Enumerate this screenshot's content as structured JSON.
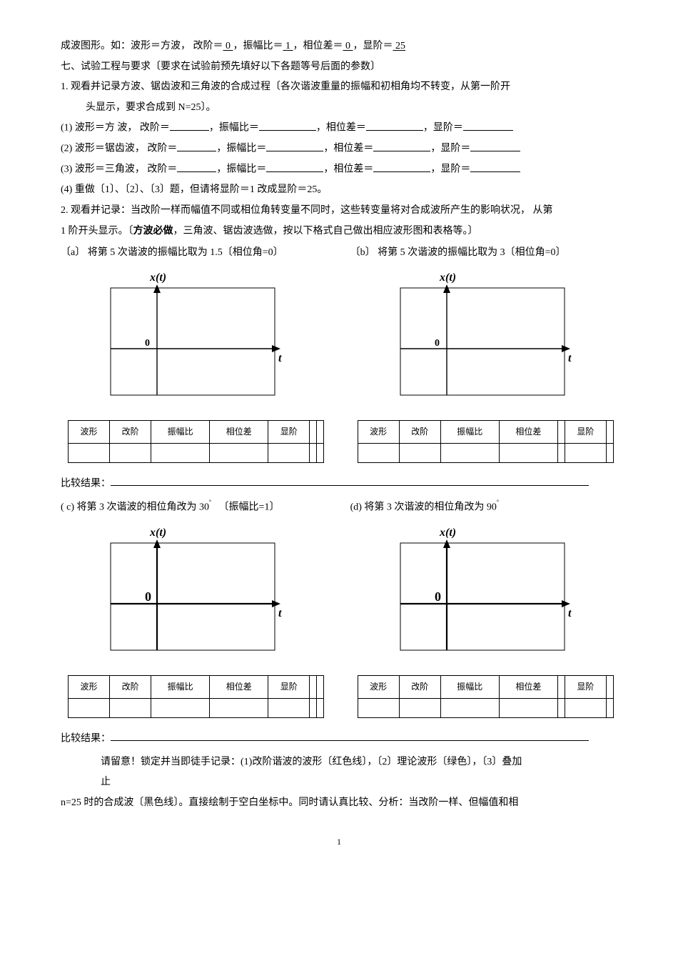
{
  "intro": {
    "line0_prefix": "成波图形。如：波形＝方波， 改阶＝",
    "v0": " 0 ",
    "t1": "，振幅比＝",
    "v1": " 1 ",
    "t2": "，相位差＝",
    "v2": " 0 ",
    "t3": "，显阶＝",
    "v3": " 25 "
  },
  "sec7_title": "七、试验工程与要求〔要求在试验前预先填好以下各题等号后面的参数〕",
  "item1": "1.  观看并记录方波、锯齿波和三角波的合成过程〔各次谐波重量的振幅和初相角均不转变，从第一阶开",
  "item1b": "头显示，要求合成到 N=25〕。",
  "rows": [
    {
      "idx": "(1)",
      "wave": "波形＝方   波， 改阶＝",
      "a": "，振幅比＝",
      "b": "，相位差＝",
      "c": "，显阶＝"
    },
    {
      "idx": "(2)",
      "wave": "波形＝锯齿波， 改阶＝",
      "a": "，振幅比＝",
      "b": "，相位差＝",
      "c": "，显阶＝"
    },
    {
      "idx": "(3)",
      "wave": "波形＝三角波， 改阶＝",
      "a": "，振幅比＝",
      "b": "，相位差＝",
      "c": "，显阶＝"
    }
  ],
  "item4": "(4) 重做〔1〕、〔2〕、〔3〕题，但请将显阶＝1 改成显阶＝25。",
  "item2": "2. 观看并记录：当改阶一样而幅值不同或相位角转变量不同时，这些转变量将对合成波所产生的影响状况， 从第",
  "item2b_a": "1 阶开头显示。〔",
  "item2b_bold": "方波必做",
  "item2b_b": "，三角波、锯齿波选做，按以下格式自己做出相应波形图和表格等。〕",
  "opt_a": "〔a〕  将第  5 次谐波的振幅比取为  1.5〔相位角=0〕",
  "opt_b": "〔b〕  将第  5 次谐波的振幅比取为  3〔相位角=0〕",
  "opt_c_pre": "( c)     将第  3 次谐波的相位角改为 30",
  "opt_c_suf": "〔振幅比=1〕",
  "opt_d_pre": "(d)     将第  3 次谐波的相位角改为 90",
  "axis_title": "x(t)",
  "axis_title_x_only": "x",
  "axis_title_t_only": "(t)",
  "axis_t": "t",
  "axis_zero": "0",
  "table_headers_a": [
    "波形",
    "改阶",
    "振幅比",
    "相位差",
    "显阶",
    "",
    ""
  ],
  "table_headers_b": [
    "波形",
    "改阶",
    "振幅比",
    "相位差",
    "",
    "显阶",
    ""
  ],
  "compare_label": "比较结果：",
  "note1": "请留意！锁定并当即徒手记录：(1)改阶谐波的波形〔红色线〕，〔2〕理论波形〔绿色〕，〔3〕叠加",
  "note1b": "止",
  "note2": "n=25 时的合成波〔黑色线〕。直接绘制于空白坐标中。同时请认真比较、分析：当改阶一样、但幅值和相",
  "page_num": "1",
  "blank_widths": {
    "short": 50,
    "med": 80,
    "long": 75
  }
}
